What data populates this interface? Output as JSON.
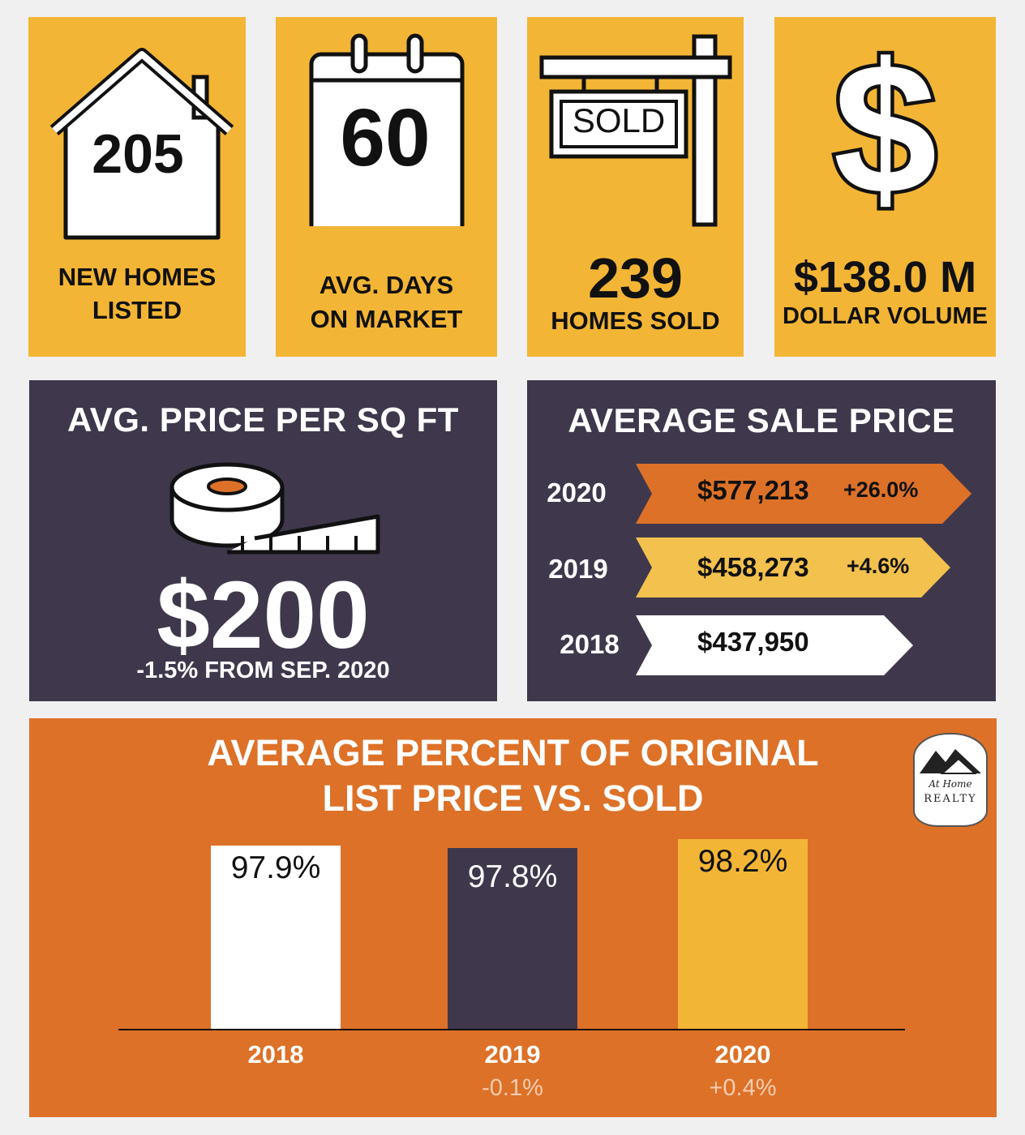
{
  "stats": {
    "new_homes": {
      "value": "205",
      "label_line1": "NEW HOMES",
      "label_line2": "LISTED",
      "icon": "house-icon"
    },
    "days_on_market": {
      "value": "60",
      "label_line1": "AVG. DAYS",
      "label_line2": "ON MARKET",
      "icon": "calendar-icon"
    },
    "homes_sold": {
      "value": "239",
      "label": "HOMES SOLD",
      "sign_text": "SOLD",
      "icon": "sold-sign-icon"
    },
    "dollar_volume": {
      "value": "$138.0 M",
      "label": "DOLLAR VOLUME",
      "icon": "dollar-icon"
    }
  },
  "price_per_sqft": {
    "title": "AVG. PRICE PER SQ FT",
    "value": "$200",
    "change": "-1.5% FROM SEP. 2020",
    "icon": "tape-measure-icon"
  },
  "average_sale_price": {
    "title": "AVERAGE SALE PRICE",
    "rows": [
      {
        "year": "2020",
        "price": "$577,213",
        "change": "+26.0%",
        "color": "#dd7128"
      },
      {
        "year": "2019",
        "price": "$458,273",
        "change": "+4.6%",
        "color": "#f2c14e"
      },
      {
        "year": "2018",
        "price": "$437,950",
        "change": "",
        "color": "#ffffff"
      }
    ]
  },
  "list_vs_sold": {
    "title_line1": "AVERAGE PERCENT OF ORIGINAL",
    "title_line2": "LIST PRICE VS. SOLD",
    "logo_text_line1": "At Home",
    "logo_text_line2": "REALTY"
  },
  "chart_data": {
    "type": "bar",
    "title": "AVERAGE PERCENT OF ORIGINAL LIST PRICE VS. SOLD",
    "categories": [
      "2018",
      "2019",
      "2020"
    ],
    "values": [
      97.9,
      97.8,
      98.2
    ],
    "value_labels": [
      "97.9%",
      "97.8%",
      "98.2%"
    ],
    "changes": [
      "",
      "-0.1%",
      "+0.4%"
    ],
    "colors": [
      "#ffffff",
      "#3f384c",
      "#f3b535"
    ],
    "label_colors": [
      "#111111",
      "#ffffff",
      "#111111"
    ],
    "ylim": [
      90,
      98.4
    ],
    "grid": false
  },
  "colors": {
    "gold": "#f3b535",
    "purple": "#3f384c",
    "orange": "#dd7128"
  }
}
